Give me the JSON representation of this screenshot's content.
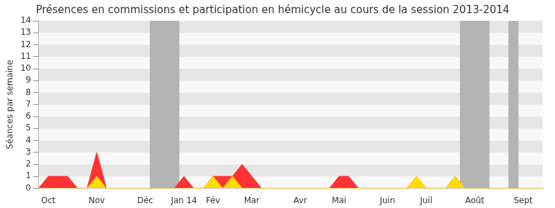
{
  "chart_data": {
    "type": "line",
    "title": "Présences en commissions et participation en hémicycle au cours de la session 2013-2014",
    "y_label": "Séances par semaine",
    "categories": [
      null,
      "Oct",
      null,
      null,
      null,
      null,
      "Nov",
      null,
      null,
      null,
      null,
      "Déc",
      null,
      null,
      null,
      "Jan 14",
      null,
      null,
      "Fév",
      null,
      null,
      null,
      "Mar",
      null,
      null,
      null,
      null,
      "Avr",
      null,
      null,
      null,
      "Mai",
      null,
      null,
      null,
      null,
      "Juin",
      null,
      null,
      null,
      "Juil",
      null,
      null,
      null,
      null,
      "Août",
      null,
      null,
      null,
      null,
      "Sept",
      null,
      null
    ],
    "series": [
      {
        "type": "bar",
        "color": "#b4b4b4",
        "values": [
          0,
          0,
          0,
          0,
          0,
          0,
          0,
          0,
          0,
          0,
          0,
          0,
          14,
          14,
          14,
          0,
          0,
          0,
          0,
          0,
          0,
          0,
          0,
          0,
          0,
          0,
          0,
          0,
          0,
          0,
          0,
          0,
          0,
          0,
          0,
          0,
          0,
          0,
          0,
          0,
          0,
          0,
          0,
          0,
          14,
          14,
          14,
          0,
          0,
          14,
          0,
          0,
          0
        ]
      },
      {
        "type": "line",
        "color": "#ff3333",
        "values": [
          0,
          1,
          1,
          1,
          0,
          0,
          3,
          0,
          0,
          0,
          0,
          0,
          0,
          0,
          0,
          1,
          0,
          0,
          1,
          1,
          1,
          2,
          1,
          0,
          0,
          0,
          0,
          0,
          0,
          0,
          0,
          1,
          1,
          0,
          0,
          0,
          0,
          0,
          0,
          1,
          0,
          0,
          0,
          1,
          0,
          0,
          0,
          0,
          0,
          0,
          0,
          0,
          0
        ]
      },
      {
        "type": "line",
        "color": "#ffdd00",
        "values": [
          0,
          0,
          0,
          0,
          0,
          0,
          1,
          0,
          0,
          0,
          0,
          0,
          0,
          0,
          0,
          0,
          0,
          0,
          1,
          0,
          1,
          0,
          0,
          0,
          0,
          0,
          0,
          0,
          0,
          0,
          0,
          0,
          0,
          0,
          0,
          0,
          0,
          0,
          0,
          1,
          0,
          0,
          0,
          1,
          0,
          0,
          0,
          0,
          0,
          0,
          0,
          0,
          0
        ]
      }
    ],
    "ylim": [
      0,
      14
    ],
    "yticks": [
      0,
      1,
      2,
      3,
      4,
      5,
      6,
      7,
      8,
      9,
      10,
      11,
      12,
      13,
      14
    ],
    "grid": true
  }
}
